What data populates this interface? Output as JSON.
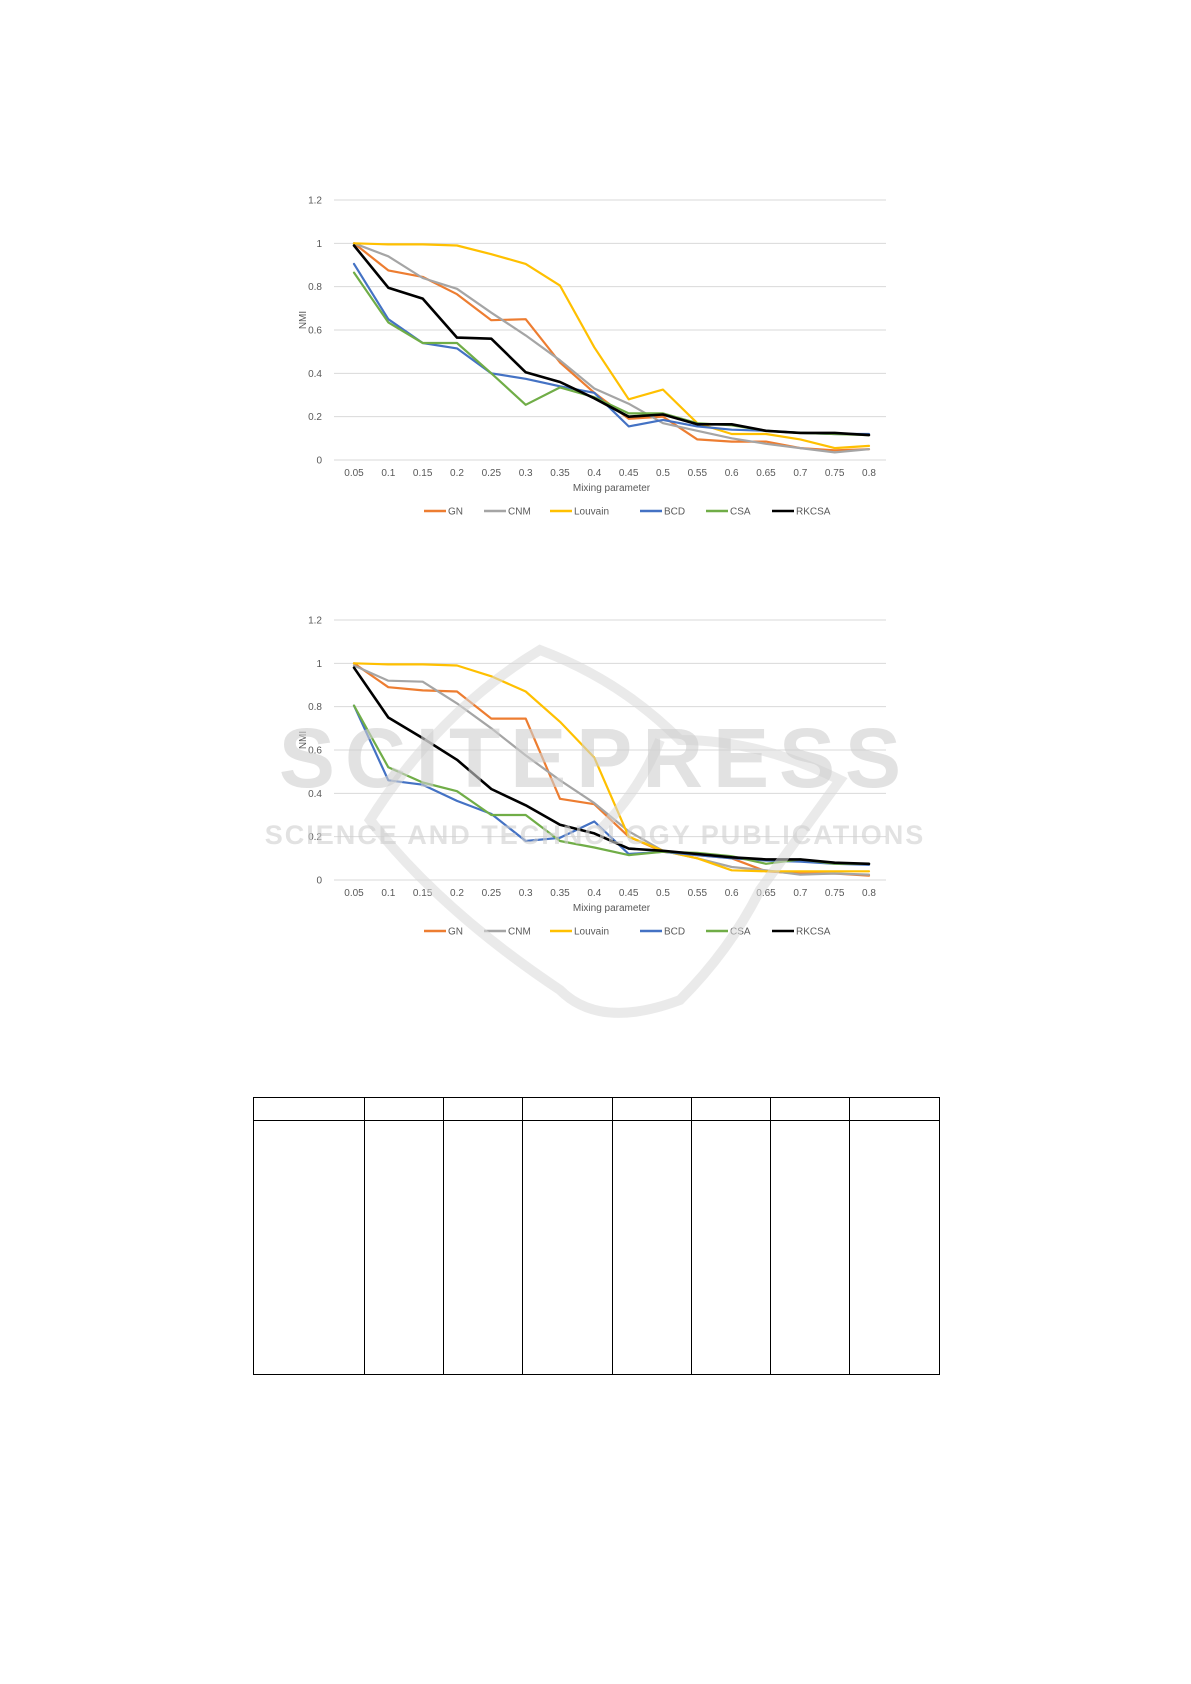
{
  "legend": [
    {
      "name": "GN",
      "color": "#ED7D31"
    },
    {
      "name": "CNM",
      "color": "#A5A5A5"
    },
    {
      "name": "Louvain",
      "color": "#FFC000"
    },
    {
      "name": "BCD",
      "color": "#4472C4"
    },
    {
      "name": "CSA",
      "color": "#70AD47"
    },
    {
      "name": "RKCSA",
      "color": "#000000"
    }
  ],
  "watermark": {
    "line1": "SCITEPRESS",
    "line2": "SCIENCE AND TECHNOLOGY PUBLICATIONS"
  },
  "table": {
    "columns": 8,
    "cells": []
  },
  "chart_data": [
    {
      "type": "line",
      "title": "",
      "xlabel": "Mixing parameter",
      "ylabel": "NMI",
      "ylim": [
        0,
        1.2
      ],
      "yticks": [
        "0",
        "0.2",
        "0.4",
        "0.6",
        "0.8",
        "1",
        "1.2"
      ],
      "categories": [
        "0.05",
        "0.1",
        "0.15",
        "0.2",
        "0.25",
        "0.3",
        "0.35",
        "0.4",
        "0.45",
        "0.5",
        "0.55",
        "0.6",
        "0.65",
        "0.7",
        "0.75",
        "0.8"
      ],
      "grid": true,
      "legend_position": "bottom",
      "series": [
        {
          "name": "GN",
          "color": "#ED7D31",
          "values": [
            1.0,
            0.875,
            0.845,
            0.765,
            0.645,
            0.65,
            0.45,
            0.31,
            0.19,
            0.2,
            0.095,
            0.085,
            0.085,
            0.055,
            0.045,
            0.05
          ]
        },
        {
          "name": "CNM",
          "color": "#A5A5A5",
          "values": [
            1.0,
            0.94,
            0.84,
            0.79,
            0.68,
            0.575,
            0.46,
            0.33,
            0.26,
            0.17,
            0.135,
            0.1,
            0.075,
            0.055,
            0.035,
            0.05
          ]
        },
        {
          "name": "Louvain",
          "color": "#FFC000",
          "values": [
            1.0,
            0.995,
            0.995,
            0.99,
            0.95,
            0.905,
            0.805,
            0.52,
            0.28,
            0.325,
            0.17,
            0.12,
            0.12,
            0.095,
            0.055,
            0.065
          ]
        },
        {
          "name": "BCD",
          "color": "#4472C4",
          "values": [
            0.905,
            0.65,
            0.54,
            0.515,
            0.4,
            0.375,
            0.34,
            0.31,
            0.155,
            0.185,
            0.155,
            0.14,
            0.135,
            0.125,
            0.12,
            0.12
          ]
        },
        {
          "name": "CSA",
          "color": "#70AD47",
          "values": [
            0.865,
            0.635,
            0.54,
            0.54,
            0.4,
            0.255,
            0.335,
            0.29,
            0.215,
            0.215,
            0.17,
            0.16,
            0.135,
            0.125,
            0.12,
            0.115
          ]
        },
        {
          "name": "RKCSA",
          "color": "#000000",
          "values": [
            0.99,
            0.795,
            0.745,
            0.565,
            0.56,
            0.405,
            0.36,
            0.285,
            0.2,
            0.21,
            0.165,
            0.165,
            0.135,
            0.125,
            0.125,
            0.115
          ]
        }
      ]
    },
    {
      "type": "line",
      "title": "",
      "xlabel": "Mixing parameter",
      "ylabel": "NMI",
      "ylim": [
        0,
        1.2
      ],
      "yticks": [
        "0",
        "0.2",
        "0.4",
        "0.6",
        "0.8",
        "1",
        "1.2"
      ],
      "categories": [
        "0.05",
        "0.1",
        "0.15",
        "0.2",
        "0.25",
        "0.3",
        "0.35",
        "0.4",
        "0.45",
        "0.5",
        "0.55",
        "0.6",
        "0.65",
        "0.7",
        "0.75",
        "0.8"
      ],
      "grid": true,
      "legend_position": "bottom",
      "series": [
        {
          "name": "GN",
          "color": "#ED7D31",
          "values": [
            1.0,
            0.89,
            0.875,
            0.87,
            0.745,
            0.745,
            0.375,
            0.35,
            0.2,
            0.13,
            0.115,
            0.1,
            0.04,
            0.03,
            0.03,
            0.02
          ]
        },
        {
          "name": "CNM",
          "color": "#A5A5A5",
          "values": [
            0.99,
            0.92,
            0.915,
            0.815,
            0.7,
            0.575,
            0.46,
            0.355,
            0.225,
            0.135,
            0.1,
            0.06,
            0.045,
            0.025,
            0.03,
            0.025
          ]
        },
        {
          "name": "Louvain",
          "color": "#FFC000",
          "values": [
            1.0,
            0.995,
            0.995,
            0.99,
            0.94,
            0.87,
            0.73,
            0.565,
            0.2,
            0.135,
            0.1,
            0.045,
            0.04,
            0.04,
            0.04,
            0.04
          ]
        },
        {
          "name": "BCD",
          "color": "#4472C4",
          "values": [
            0.805,
            0.46,
            0.44,
            0.365,
            0.305,
            0.18,
            0.195,
            0.27,
            0.12,
            0.13,
            0.115,
            0.1,
            0.09,
            0.085,
            0.075,
            0.07
          ]
        },
        {
          "name": "CSA",
          "color": "#70AD47",
          "values": [
            0.805,
            0.52,
            0.45,
            0.41,
            0.3,
            0.3,
            0.18,
            0.15,
            0.115,
            0.13,
            0.125,
            0.11,
            0.075,
            0.095,
            0.075,
            0.075
          ]
        },
        {
          "name": "RKCSA",
          "color": "#000000",
          "values": [
            0.98,
            0.75,
            0.655,
            0.555,
            0.42,
            0.345,
            0.255,
            0.215,
            0.145,
            0.135,
            0.12,
            0.105,
            0.095,
            0.095,
            0.08,
            0.075
          ]
        }
      ]
    }
  ]
}
